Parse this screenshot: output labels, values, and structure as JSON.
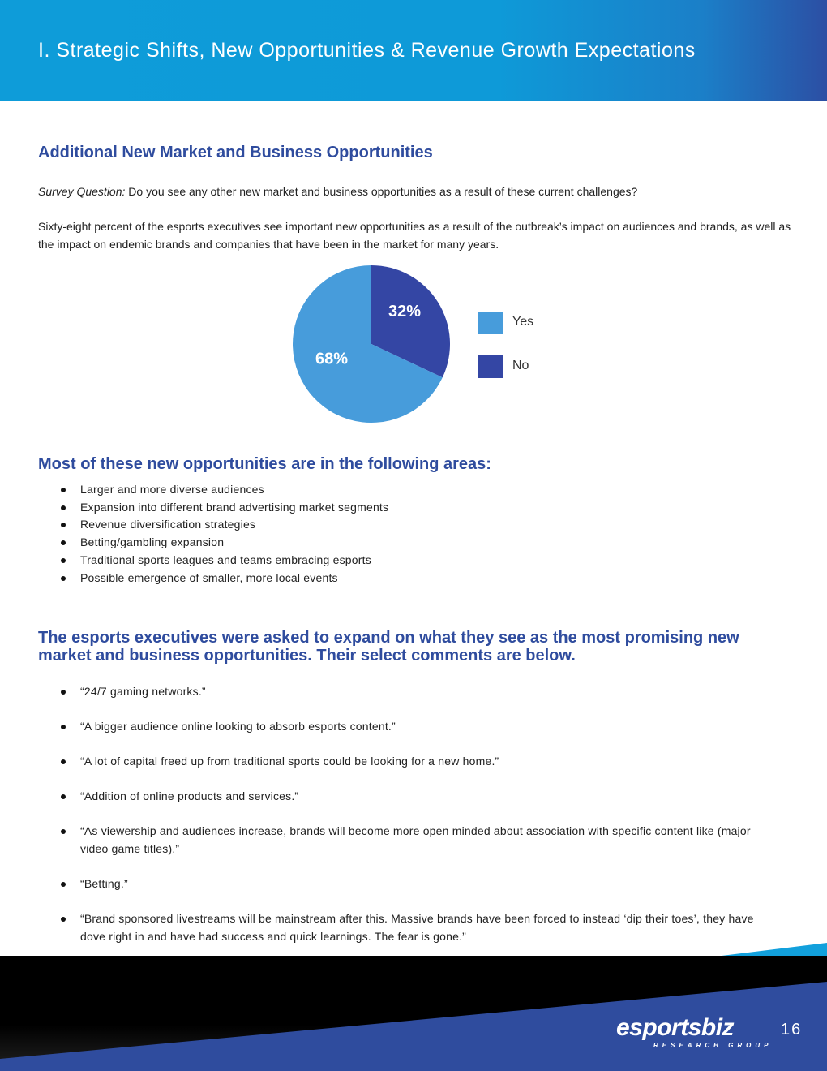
{
  "header": {
    "title": "I. Strategic Shifts, New Opportunities & Revenue Growth Expectations"
  },
  "section1": {
    "heading": "Additional New Market and Business Opportunities",
    "question_label": "Survey Question:",
    "question": "Do you see any other new market and business opportunities as a result of these current challenges?",
    "body": "Sixty-eight percent of the esports executives see important new opportunities as a result of the outbreak’s impact on audiences and brands, as well as the impact on endemic brands and companies that have been in the market for many years."
  },
  "chart_data": {
    "type": "pie",
    "slices": [
      {
        "label": "Yes",
        "value": 68,
        "display": "68%",
        "color": "#479cdb"
      },
      {
        "label": "No",
        "value": 32,
        "display": "32%",
        "color": "#3446a4"
      }
    ],
    "legend_placement": "right"
  },
  "section2": {
    "heading": "Most of these new opportunities are in the following areas:",
    "items": [
      "Larger and more diverse audiences",
      "Expansion into different brand advertising market segments",
      "Revenue diversification strategies",
      "Betting/gambling expansion",
      "Traditional sports leagues and teams embracing esports",
      "Possible emergence of smaller, more local events"
    ]
  },
  "section3": {
    "heading": "The esports executives were asked to expand on what they see as the most promising new market and business opportunities. Their select comments are below.",
    "quotes": [
      "“24/7 gaming networks.”",
      "“A bigger audience online looking to absorb esports content.”",
      "“A lot of capital freed up from traditional sports could be looking for a new home.”",
      "“Addition of online products and services.”",
      "“As viewership and audiences increase, brands will become more open minded about association with specific content like (major video game titles).”",
      "“Betting.”",
      "“Brand sponsored livestreams will be mainstream after this. Massive brands have been forced to instead ‘dip their toes’, they have dove right in and have had success and quick learnings. The fear is gone.”"
    ]
  },
  "footer": {
    "logo": "esportsbiz",
    "logo_sub": "RESEARCH GROUP",
    "page": "16"
  }
}
